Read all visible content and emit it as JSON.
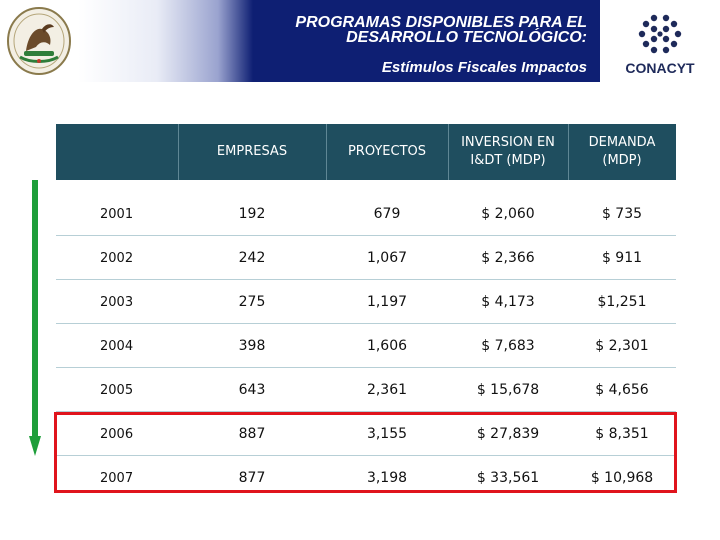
{
  "header": {
    "title_line1": "PROGRAMAS DISPONIBLES PARA EL",
    "title_line2": "DESARROLLO TECNOLÓGICO:",
    "subtitle": "Estímulos Fiscales  Impactos",
    "left_logo_icon": "mexico-seal-icon",
    "right_logo_icon": "conacyt-logo-icon",
    "right_logo_text": "CONACYT"
  },
  "table": {
    "columns": [
      "",
      "EMPRESAS",
      "PROYECTOS",
      "INVERSION EN\nI&DT (MDP)",
      "DEMANDA\n(MDP)"
    ],
    "rows": [
      {
        "year": "2001",
        "empresas": "192",
        "proyectos": "679",
        "inversion": "$ 2,060",
        "demanda": "$ 735"
      },
      {
        "year": "2002",
        "empresas": "242",
        "proyectos": "1,067",
        "inversion": "$ 2,366",
        "demanda": "$ 911"
      },
      {
        "year": "2003",
        "empresas": "275",
        "proyectos": "1,197",
        "inversion": "$ 4,173",
        "demanda": "$1,251"
      },
      {
        "year": "2004",
        "empresas": "398",
        "proyectos": "1,606",
        "inversion": "$ 7,683",
        "demanda": "$ 2,301"
      },
      {
        "year": "2005",
        "empresas": "643",
        "proyectos": "2,361",
        "inversion": "$ 15,678",
        "demanda": "$ 4,656"
      },
      {
        "year": "2006",
        "empresas": "887",
        "proyectos": "3,155",
        "inversion": "$ 27,839",
        "demanda": "$ 8,351"
      },
      {
        "year": "2007",
        "empresas": "877",
        "proyectos": "3,198",
        "inversion": "$ 33,561",
        "demanda": "$ 10,968"
      }
    ]
  },
  "decorations": {
    "arrow_icon": "down-arrow-icon",
    "arrow_color": "#1e9e3a",
    "highlight_color": "#e0141c",
    "header_color": "#0e1f73",
    "table_header_color": "#1f4e5f"
  }
}
